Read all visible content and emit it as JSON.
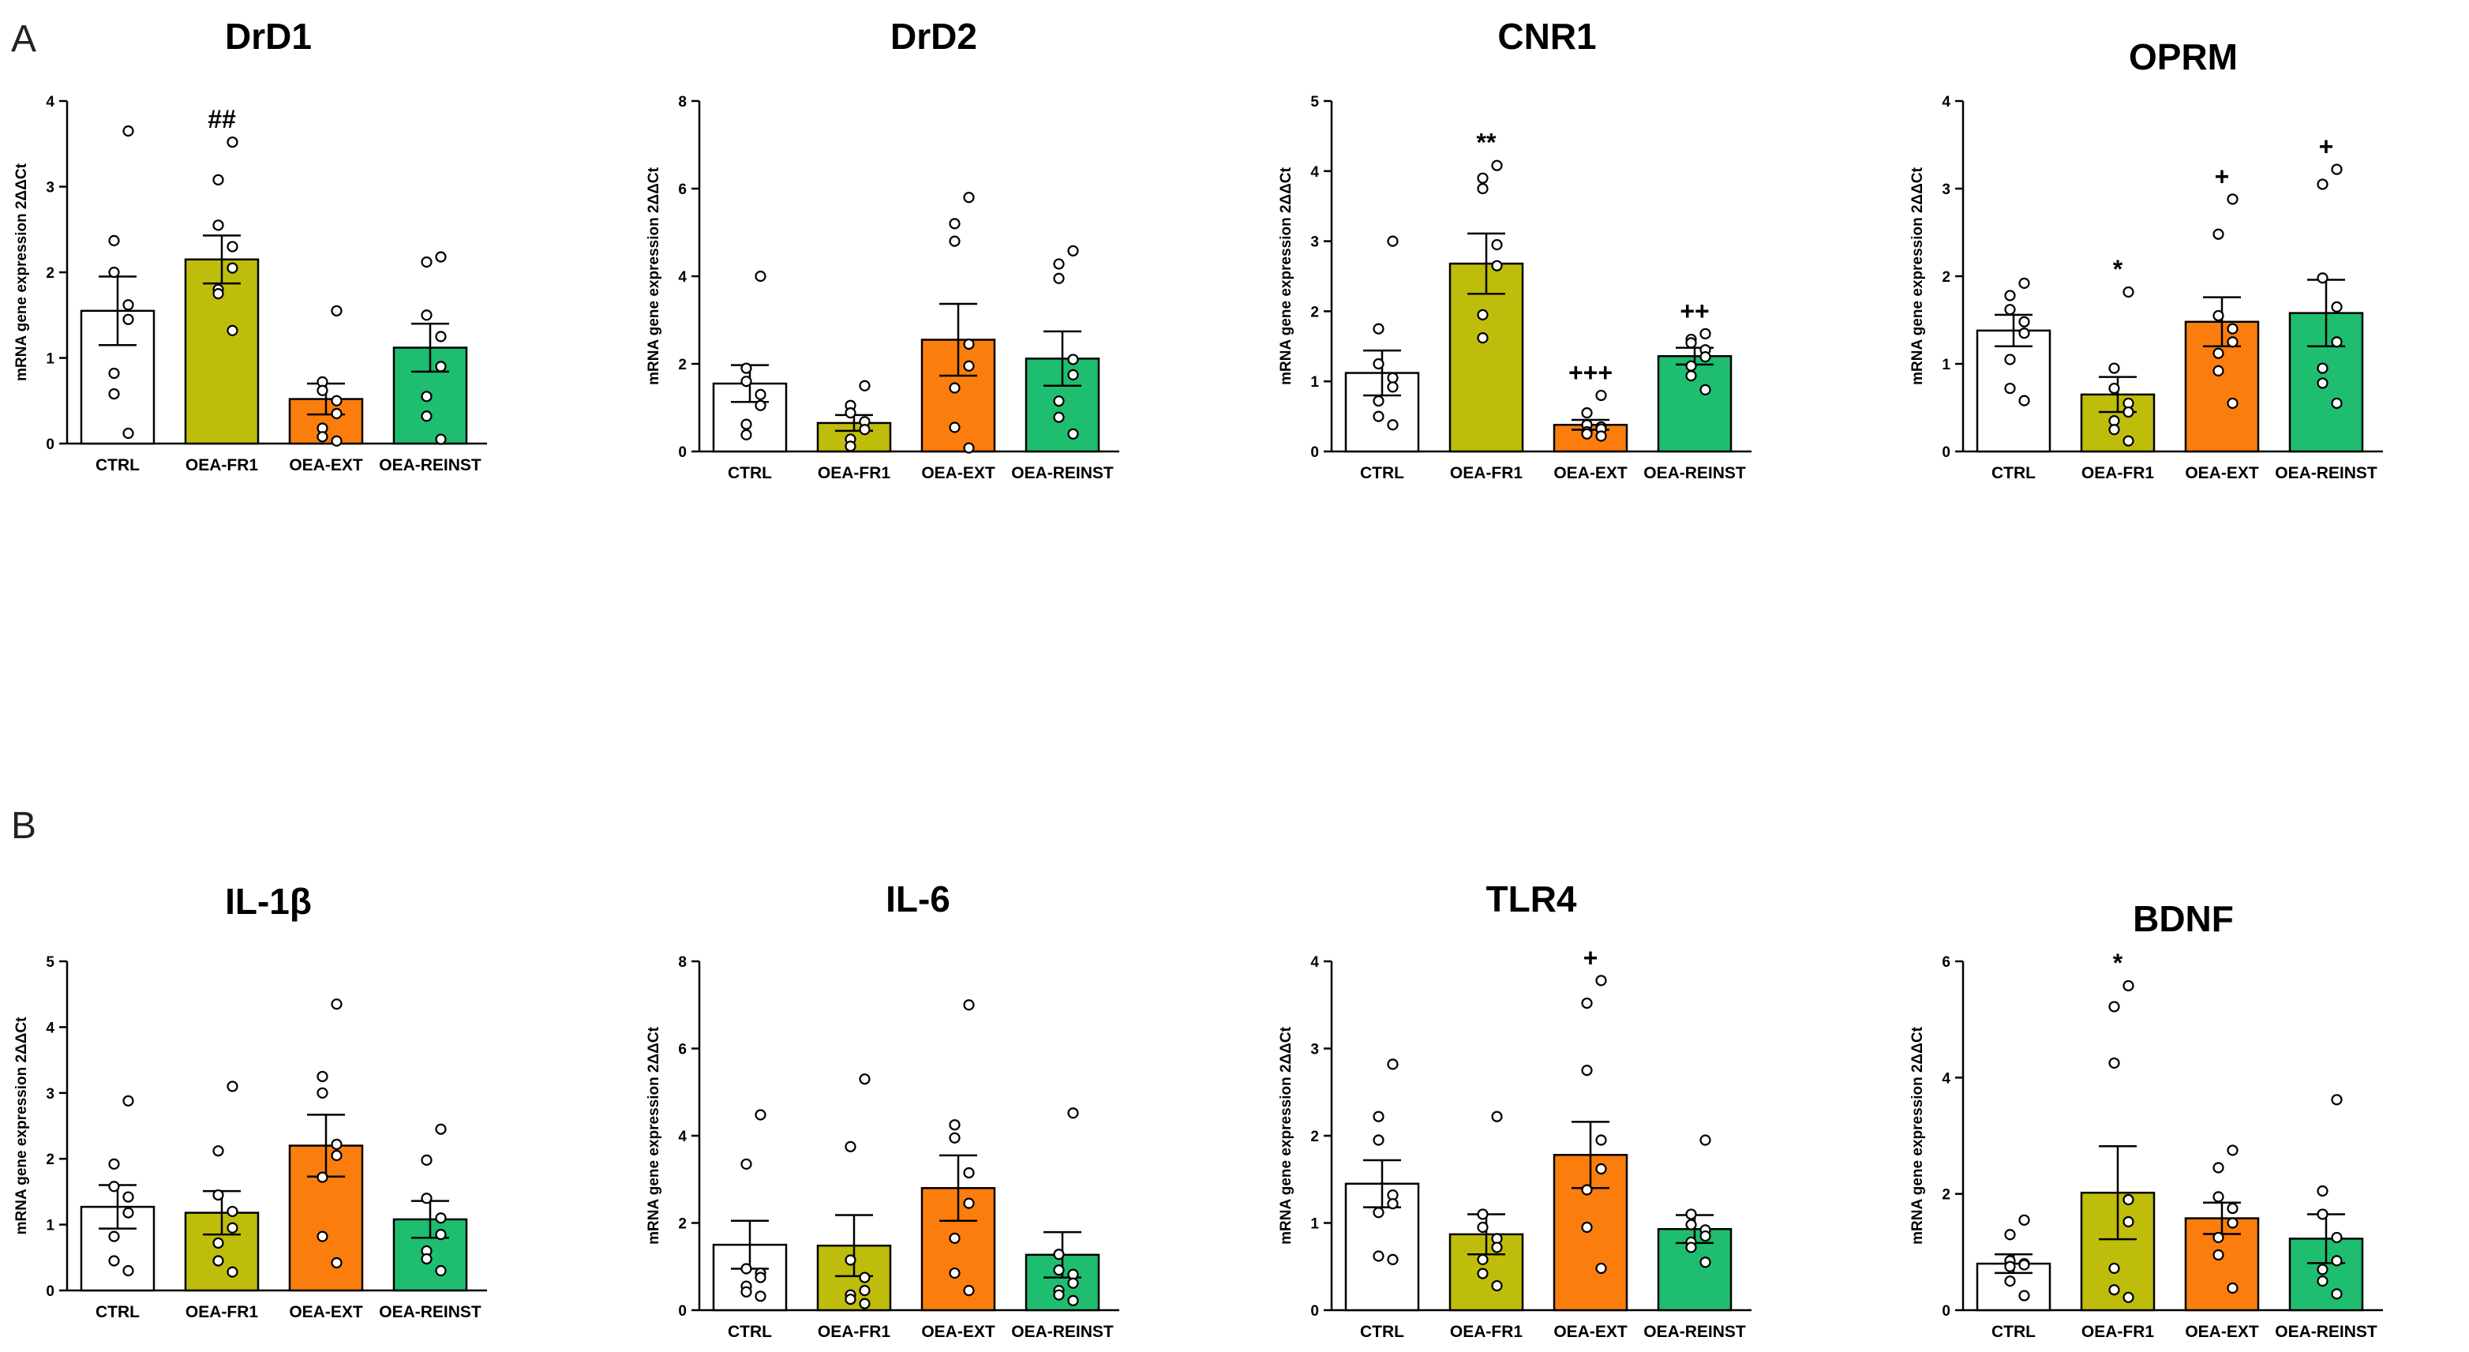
{
  "panel_labels": {
    "A": "A",
    "B": "B"
  },
  "colors": {
    "CTRL": "#ffffff",
    "OEA-FR1": "#bfbd0b",
    "OEA-EXT": "#fb7d0e",
    "OEA-REINST": "#1fbd6f",
    "stroke": "#000000"
  },
  "chart_data": [
    {
      "type": "bar",
      "panel": "A",
      "title": "DrD1",
      "ylabel": "mRNA gene expression 2ΔΔCt",
      "categories": [
        "CTRL",
        "OEA-FR1",
        "OEA-EXT",
        "OEA-REINST"
      ],
      "ylim": [
        0,
        4
      ],
      "yticks": [
        0,
        1,
        2,
        3,
        4
      ],
      "values": [
        1.55,
        2.15,
        0.52,
        1.12
      ],
      "sem": [
        0.4,
        0.28,
        0.18,
        0.28
      ],
      "points": [
        [
          3.65,
          2.37,
          2.0,
          1.62,
          1.45,
          0.82,
          0.58,
          0.12
        ],
        [
          3.52,
          3.08,
          2.55,
          2.3,
          2.05,
          1.8,
          1.75,
          1.32
        ],
        [
          1.55,
          0.72,
          0.62,
          0.5,
          0.35,
          0.18,
          0.08,
          0.03
        ],
        [
          2.18,
          2.12,
          1.5,
          1.25,
          0.9,
          0.55,
          0.32,
          0.05
        ]
      ],
      "significance": [
        "",
        "##",
        "",
        ""
      ]
    },
    {
      "type": "bar",
      "panel": "A",
      "title": "DrD2",
      "ylabel": "mRNA gene expression 2ΔΔCt",
      "categories": [
        "CTRL",
        "OEA-FR1",
        "OEA-EXT",
        "OEA-REINST"
      ],
      "ylim": [
        0,
        8
      ],
      "yticks": [
        0,
        2,
        4,
        6,
        8
      ],
      "values": [
        1.55,
        0.65,
        2.55,
        2.12
      ],
      "sem": [
        0.42,
        0.18,
        0.82,
        0.62
      ],
      "points": [
        [
          4.0,
          1.9,
          1.6,
          1.3,
          1.05,
          0.62,
          0.38
        ],
        [
          1.5,
          1.05,
          0.88,
          0.68,
          0.5,
          0.28,
          0.12
        ],
        [
          5.8,
          5.2,
          4.8,
          2.45,
          1.95,
          1.45,
          0.55,
          0.08
        ],
        [
          4.58,
          4.28,
          3.95,
          2.1,
          1.75,
          1.15,
          0.78,
          0.4
        ]
      ],
      "significance": [
        "",
        "",
        "",
        ""
      ]
    },
    {
      "type": "bar",
      "panel": "A",
      "title": "CNR1",
      "ylabel": "mRNA gene expression 2ΔΔCt",
      "categories": [
        "CTRL",
        "OEA-FR1",
        "OEA-EXT",
        "OEA-REINST"
      ],
      "ylim": [
        0,
        5
      ],
      "yticks": [
        0,
        1,
        2,
        3,
        4,
        5
      ],
      "values": [
        1.12,
        2.68,
        0.38,
        1.36
      ],
      "sem": [
        0.32,
        0.43,
        0.07,
        0.12
      ],
      "points": [
        [
          3.0,
          1.75,
          1.25,
          1.05,
          0.92,
          0.72,
          0.5,
          0.38
        ],
        [
          4.08,
          3.9,
          3.75,
          2.95,
          2.65,
          1.95,
          1.62
        ],
        [
          0.8,
          0.55,
          0.38,
          0.35,
          0.32,
          0.28,
          0.25,
          0.22
        ],
        [
          1.68,
          1.6,
          1.55,
          1.45,
          1.35,
          1.22,
          1.08,
          0.88
        ]
      ],
      "significance": [
        "",
        "**",
        "+++",
        "++"
      ]
    },
    {
      "type": "bar",
      "panel": "A",
      "title": "OPRM",
      "ylabel": "mRNA gene expression 2ΔΔCt",
      "categories": [
        "CTRL",
        "OEA-FR1",
        "OEA-EXT",
        "OEA-REINST"
      ],
      "ylim": [
        0,
        4
      ],
      "yticks": [
        0,
        1,
        2,
        3,
        4
      ],
      "values": [
        1.38,
        0.65,
        1.48,
        1.58
      ],
      "sem": [
        0.18,
        0.2,
        0.28,
        0.38
      ],
      "points": [
        [
          1.92,
          1.78,
          1.62,
          1.48,
          1.35,
          1.05,
          0.72,
          0.58
        ],
        [
          1.82,
          0.95,
          0.72,
          0.55,
          0.45,
          0.35,
          0.25,
          0.12
        ],
        [
          2.88,
          2.48,
          1.55,
          1.4,
          1.25,
          1.12,
          0.92,
          0.55
        ],
        [
          3.22,
          3.05,
          1.98,
          1.65,
          1.25,
          0.95,
          0.78,
          0.55
        ]
      ],
      "significance": [
        "",
        "*",
        "+",
        "+"
      ]
    },
    {
      "type": "bar",
      "panel": "B",
      "title": "IL-1β",
      "ylabel": "mRNA gene expression 2ΔΔCt",
      "categories": [
        "CTRL",
        "OEA-FR1",
        "OEA-EXT",
        "OEA-REINST"
      ],
      "ylim": [
        0,
        5
      ],
      "yticks": [
        0,
        1,
        2,
        3,
        4,
        5
      ],
      "values": [
        1.27,
        1.18,
        2.2,
        1.08
      ],
      "sem": [
        0.33,
        0.33,
        0.47,
        0.28
      ],
      "points": [
        [
          2.88,
          1.92,
          1.58,
          1.42,
          1.18,
          0.82,
          0.45,
          0.3
        ],
        [
          3.1,
          2.12,
          1.45,
          1.2,
          0.95,
          0.72,
          0.45,
          0.28
        ],
        [
          4.35,
          3.25,
          3.0,
          2.22,
          2.05,
          1.72,
          0.82,
          0.42
        ],
        [
          2.45,
          1.98,
          1.4,
          1.1,
          0.85,
          0.6,
          0.48,
          0.3
        ]
      ],
      "significance": [
        "",
        "",
        "",
        ""
      ]
    },
    {
      "type": "bar",
      "panel": "B",
      "title": "IL-6",
      "ylabel": "mRNA gene expression 2ΔΔCt",
      "categories": [
        "CTRL",
        "OEA-FR1",
        "OEA-EXT",
        "OEA-REINST"
      ],
      "ylim": [
        0,
        8
      ],
      "yticks": [
        0,
        2,
        4,
        6,
        8
      ],
      "values": [
        1.5,
        1.48,
        2.8,
        1.27
      ],
      "sem": [
        0.55,
        0.7,
        0.75,
        0.52
      ],
      "points": [
        [
          4.48,
          3.35,
          0.95,
          0.85,
          0.75,
          0.55,
          0.42,
          0.32
        ],
        [
          5.3,
          3.75,
          1.15,
          0.75,
          0.45,
          0.35,
          0.25,
          0.15
        ],
        [
          7.0,
          4.25,
          3.95,
          3.15,
          2.45,
          1.65,
          0.85,
          0.45
        ],
        [
          4.52,
          1.28,
          0.92,
          0.82,
          0.62,
          0.45,
          0.35,
          0.22
        ]
      ],
      "significance": [
        "",
        "",
        "",
        ""
      ]
    },
    {
      "type": "bar",
      "panel": "B",
      "title": "TLR4",
      "ylabel": "mRNA gene expression 2ΔΔCt",
      "categories": [
        "CTRL",
        "OEA-FR1",
        "OEA-EXT",
        "OEA-REINST"
      ],
      "ylim": [
        0,
        4
      ],
      "yticks": [
        0,
        1,
        2,
        3,
        4
      ],
      "values": [
        1.45,
        0.87,
        1.78,
        0.93
      ],
      "sem": [
        0.27,
        0.23,
        0.38,
        0.16
      ],
      "points": [
        [
          2.82,
          2.22,
          1.95,
          1.32,
          1.22,
          1.12,
          0.62,
          0.58
        ],
        [
          2.22,
          1.1,
          0.95,
          0.82,
          0.72,
          0.58,
          0.42,
          0.28
        ],
        [
          3.78,
          3.52,
          2.75,
          1.95,
          1.62,
          1.38,
          0.95,
          0.48
        ],
        [
          1.95,
          1.1,
          0.98,
          0.92,
          0.85,
          0.78,
          0.72,
          0.55
        ]
      ],
      "significance": [
        "",
        "",
        "+",
        ""
      ]
    },
    {
      "type": "bar",
      "panel": "B",
      "title": "BDNF",
      "ylabel": "mRNA gene expression 2ΔΔCt",
      "categories": [
        "CTRL",
        "OEA-FR1",
        "OEA-EXT",
        "OEA-REINST"
      ],
      "ylim": [
        0,
        6
      ],
      "yticks": [
        0,
        2,
        4,
        6
      ],
      "values": [
        0.8,
        2.02,
        1.58,
        1.23
      ],
      "sem": [
        0.16,
        0.8,
        0.27,
        0.42
      ],
      "points": [
        [
          1.55,
          1.3,
          0.85,
          0.8,
          0.78,
          0.75,
          0.5,
          0.25
        ],
        [
          5.58,
          5.22,
          4.25,
          1.9,
          1.52,
          0.72,
          0.35,
          0.22
        ],
        [
          2.75,
          2.45,
          1.95,
          1.75,
          1.5,
          1.25,
          0.95,
          0.38
        ],
        [
          3.62,
          2.05,
          1.65,
          1.25,
          0.85,
          0.7,
          0.5,
          0.28
        ]
      ],
      "significance": [
        "",
        "*",
        "",
        ""
      ]
    }
  ]
}
